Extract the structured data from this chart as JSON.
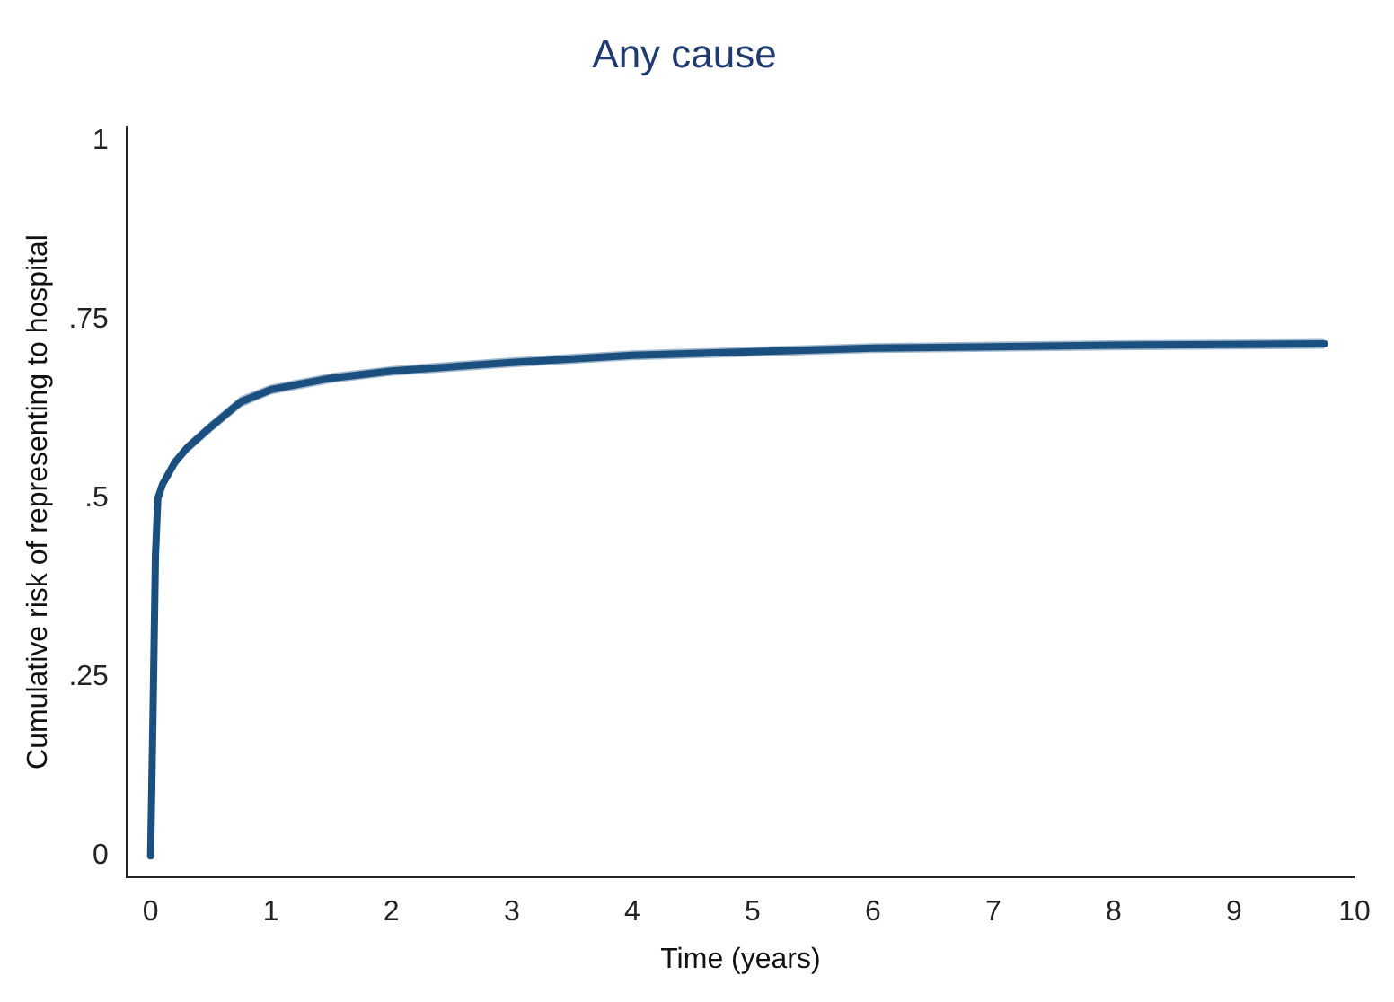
{
  "chart_data": {
    "type": "line",
    "title": "Any cause",
    "xlabel": "Time (years)",
    "ylabel": "Cumulative risk of representing to hospital",
    "x": [
      0,
      0.02,
      0.04,
      0.06,
      0.1,
      0.2,
      0.3,
      0.5,
      0.75,
      1,
      1.5,
      2,
      3,
      4,
      5,
      6,
      7,
      8,
      9,
      9.75
    ],
    "series": [
      {
        "color": "#1b4f7f",
        "values": [
          0,
          0.2,
          0.42,
          0.5,
          0.52,
          0.55,
          0.57,
          0.6,
          0.635,
          0.652,
          0.668,
          0.678,
          0.69,
          0.7,
          0.705,
          0.71,
          0.712,
          0.714,
          0.715,
          0.716
        ],
        "lower": [
          0,
          0.19,
          0.41,
          0.49,
          0.512,
          0.542,
          0.562,
          0.592,
          0.627,
          0.645,
          0.661,
          0.671,
          0.683,
          0.693,
          0.698,
          0.703,
          0.705,
          0.707,
          0.708,
          0.709
        ],
        "upper": [
          0,
          0.21,
          0.43,
          0.51,
          0.528,
          0.558,
          0.578,
          0.608,
          0.643,
          0.659,
          0.675,
          0.685,
          0.697,
          0.707,
          0.712,
          0.717,
          0.719,
          0.721,
          0.722,
          0.723
        ]
      }
    ],
    "xlim": [
      -0.2,
      10
    ],
    "xticks": [
      0,
      1,
      2,
      3,
      4,
      5,
      6,
      7,
      8,
      9,
      10
    ],
    "ylim": [
      -0.03,
      1.02
    ],
    "yticks": [
      {
        "value": 0,
        "label": "0"
      },
      {
        "value": 0.25,
        "label": ".25"
      },
      {
        "value": 0.5,
        "label": ".5"
      },
      {
        "value": 0.75,
        "label": ".75"
      },
      {
        "value": 1,
        "label": "1"
      }
    ],
    "grid": false,
    "legend": false,
    "marker": "none",
    "line_style": "solid"
  }
}
